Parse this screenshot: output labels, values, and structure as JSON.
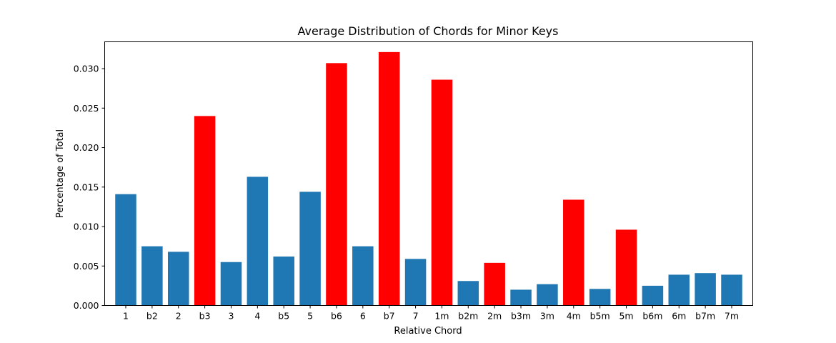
{
  "chart_data": {
    "type": "bar",
    "title": "Average Distribution of Chords for Minor Keys",
    "xlabel": "Relative Chord",
    "ylabel": "Percentage of Total",
    "categories": [
      "1",
      "b2",
      "2",
      "b3",
      "3",
      "4",
      "b5",
      "5",
      "b6",
      "6",
      "b7",
      "7",
      "1m",
      "b2m",
      "2m",
      "b3m",
      "3m",
      "4m",
      "b5m",
      "5m",
      "b6m",
      "6m",
      "b7m",
      "7m"
    ],
    "values": [
      0.0141,
      0.0075,
      0.0068,
      0.024,
      0.0055,
      0.0163,
      0.0062,
      0.0144,
      0.0307,
      0.0075,
      0.0321,
      0.0059,
      0.0286,
      0.0031,
      0.0054,
      0.002,
      0.0027,
      0.0134,
      0.0021,
      0.0096,
      0.0025,
      0.0039,
      0.0041,
      0.0039
    ],
    "highlighted": [
      false,
      false,
      false,
      true,
      false,
      false,
      false,
      false,
      true,
      false,
      true,
      false,
      true,
      false,
      true,
      false,
      false,
      true,
      false,
      true,
      false,
      false,
      false,
      false
    ],
    "colors": {
      "default": "#1f77b4",
      "highlight": "#ff0000"
    },
    "ylim": [
      0,
      0.0334
    ],
    "yticks": [
      "0.000",
      "0.005",
      "0.010",
      "0.015",
      "0.020",
      "0.025",
      "0.030"
    ],
    "grid": false,
    "legend": "none"
  }
}
